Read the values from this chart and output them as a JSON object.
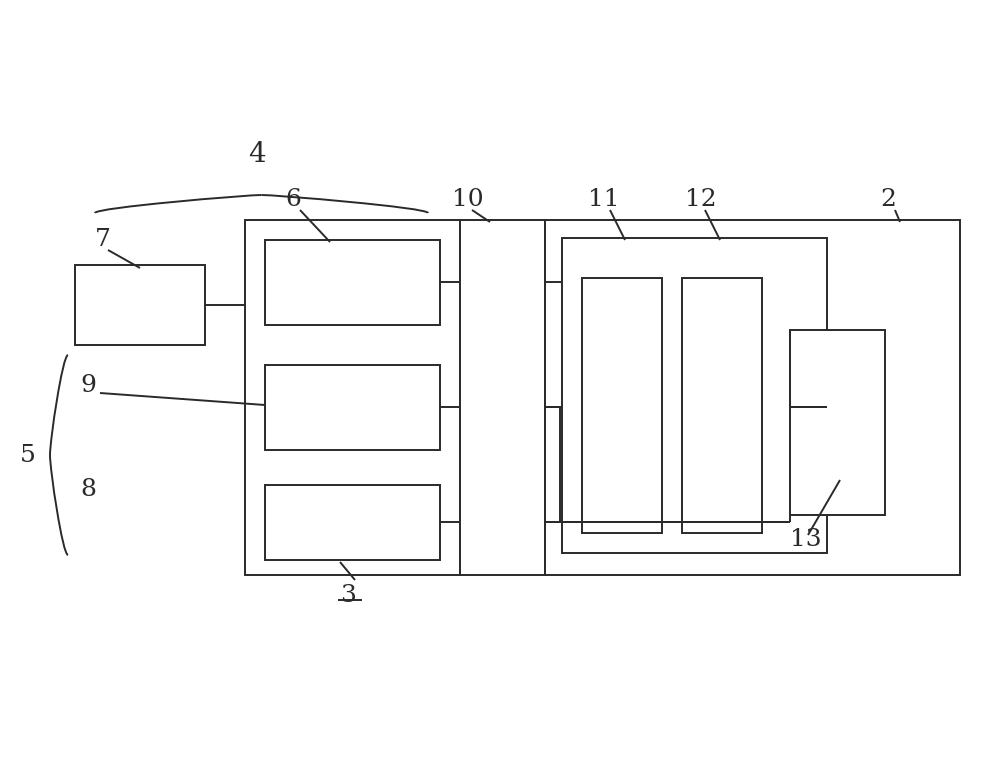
{
  "bg_color": "#ffffff",
  "line_color": "#2a2a2a",
  "figsize": [
    10.0,
    7.6
  ],
  "dpi": 100,
  "lw": 1.4
}
